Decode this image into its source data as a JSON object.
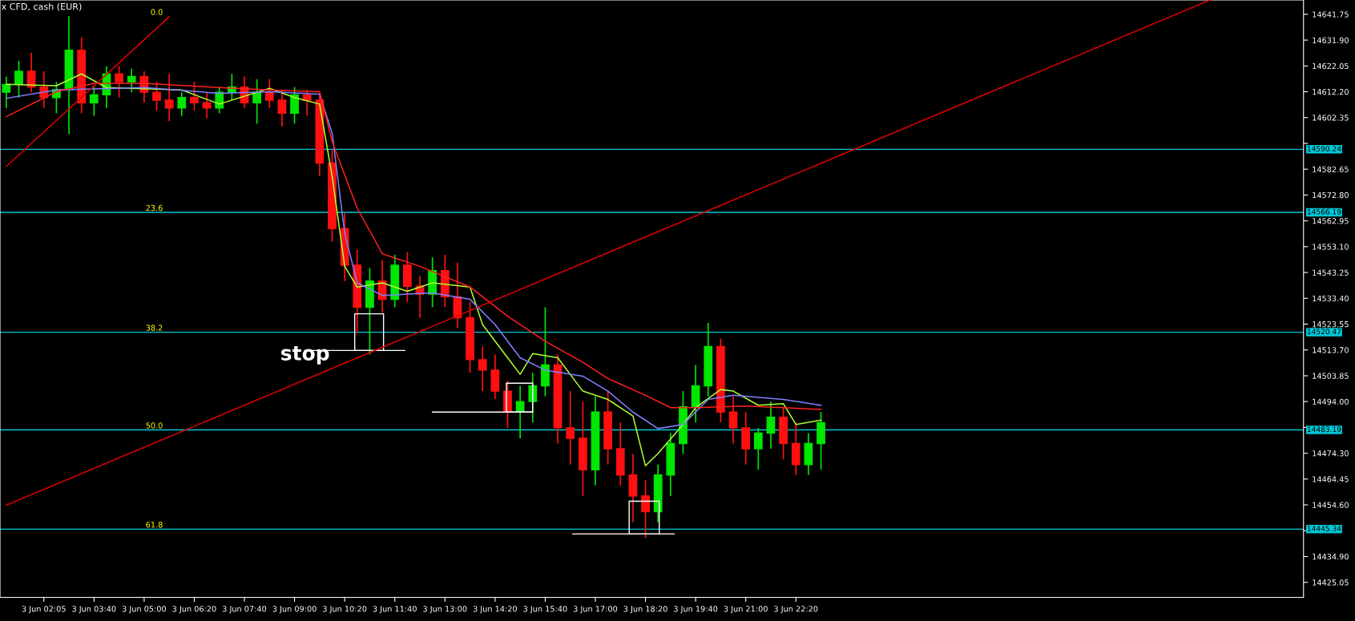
{
  "chart_data": {
    "type": "candlestick",
    "title": "x CFD, cash (EUR)",
    "categories": [
      null,
      null,
      null,
      "3 Jun 02:05",
      null,
      null,
      null,
      "3 Jun 03:40",
      null,
      null,
      null,
      "3 Jun 05:00",
      null,
      null,
      null,
      "3 Jun 06:20",
      null,
      null,
      null,
      "3 Jun 07:40",
      null,
      null,
      null,
      "3 Jun 09:00",
      null,
      null,
      null,
      "3 Jun 10:20",
      null,
      null,
      null,
      "3 Jun 11:40",
      null,
      null,
      null,
      "3 Jun 13:00",
      null,
      null,
      null,
      "3 Jun 14:20",
      null,
      null,
      null,
      "3 Jun 15:40",
      null,
      null,
      null,
      "3 Jun 17:00",
      null,
      null,
      null,
      "3 Jun 18:20",
      null,
      null,
      null,
      "3 Jun 19:40",
      null,
      null,
      null,
      "3 Jun 21:00",
      null,
      null,
      null,
      "3 Jun 22:20",
      null,
      null,
      null,
      null,
      null,
      null,
      null,
      null,
      null,
      null,
      null,
      null,
      null,
      null,
      null,
      null,
      null,
      null,
      null,
      null,
      null,
      null,
      null,
      null,
      null,
      null,
      null,
      null,
      null,
      null,
      null,
      null,
      null,
      null,
      null,
      null,
      null,
      null,
      null,
      null
    ],
    "ohlc": [
      [
        14612,
        14618,
        14606,
        14615
      ],
      [
        14615,
        14624,
        14610,
        14620
      ],
      [
        14620,
        14627,
        14612,
        14614
      ],
      [
        14614,
        14620,
        14606,
        14610
      ],
      [
        14610,
        14616,
        14604,
        14613
      ],
      [
        14613,
        14641,
        14596,
        14628
      ],
      [
        14628,
        14633,
        14604,
        14608
      ],
      [
        14608,
        14614,
        14603,
        14611
      ],
      [
        14611,
        14622,
        14606,
        14619
      ],
      [
        14619,
        14622,
        14610,
        14616
      ],
      [
        14616,
        14621,
        14612,
        14618
      ],
      [
        14618,
        14620,
        14608,
        14612
      ],
      [
        14612,
        14616,
        14605,
        14609
      ],
      [
        14609,
        14619,
        14601,
        14606
      ],
      [
        14606,
        14612,
        14603,
        14610
      ],
      [
        14610,
        14616,
        14605,
        14608
      ],
      [
        14608,
        14612,
        14602,
        14606
      ],
      [
        14606,
        14614,
        14604,
        14612
      ],
      [
        14612,
        14619,
        14609,
        14614
      ],
      [
        14614,
        14618,
        14606,
        14608
      ],
      [
        14608,
        14617,
        14600,
        14612
      ],
      [
        14612,
        14617,
        14606,
        14609
      ],
      [
        14609,
        14613,
        14599,
        14604
      ],
      [
        14604,
        14614,
        14600,
        14611
      ],
      [
        14611,
        14613,
        14603,
        14609
      ],
      [
        14609,
        14611,
        14580,
        14585
      ],
      [
        14585,
        14590,
        14555,
        14560
      ],
      [
        14560,
        14566,
        14540,
        14546
      ],
      [
        14546,
        14552,
        14520,
        14530
      ],
      [
        14530,
        14545,
        14512,
        14540
      ],
      [
        14540,
        14548,
        14528,
        14533
      ],
      [
        14533,
        14550,
        14530,
        14546
      ],
      [
        14546,
        14551,
        14532,
        14538
      ],
      [
        14538,
        14542,
        14526,
        14535
      ],
      [
        14535,
        14549,
        14530,
        14544
      ],
      [
        14544,
        14550,
        14530,
        14534
      ],
      [
        14534,
        14547,
        14522,
        14526
      ],
      [
        14526,
        14532,
        14505,
        14510
      ],
      [
        14510,
        14515,
        14498,
        14506
      ],
      [
        14506,
        14512,
        14495,
        14498
      ],
      [
        14498,
        14502,
        14484,
        14490
      ],
      [
        14490,
        14500,
        14480,
        14494
      ],
      [
        14494,
        14505,
        14486,
        14500
      ],
      [
        14500,
        14530,
        14496,
        14508
      ],
      [
        14508,
        14512,
        14478,
        14484
      ],
      [
        14484,
        14498,
        14470,
        14480
      ],
      [
        14480,
        14494,
        14458,
        14468
      ],
      [
        14468,
        14496,
        14462,
        14490
      ],
      [
        14490,
        14498,
        14470,
        14476
      ],
      [
        14476,
        14486,
        14462,
        14466
      ],
      [
        14466,
        14474,
        14448,
        14458
      ],
      [
        14458,
        14464,
        14442,
        14452
      ],
      [
        14452,
        14470,
        14448,
        14466
      ],
      [
        14466,
        14482,
        14458,
        14478
      ],
      [
        14478,
        14498,
        14474,
        14492
      ],
      [
        14492,
        14508,
        14486,
        14500
      ],
      [
        14500,
        14524,
        14496,
        14515
      ],
      [
        14515,
        14518,
        14486,
        14490
      ],
      [
        14490,
        14496,
        14478,
        14484
      ],
      [
        14484,
        14490,
        14470,
        14476
      ],
      [
        14476,
        14484,
        14468,
        14482
      ],
      [
        14482,
        14494,
        14476,
        14488
      ],
      [
        14488,
        14492,
        14472,
        14478
      ],
      [
        14478,
        14486,
        14466,
        14470
      ],
      [
        14470,
        14482,
        14466,
        14478
      ],
      [
        14478,
        14490,
        14468,
        14486
      ],
      null,
      null,
      null,
      null,
      null,
      null,
      null,
      null,
      null,
      null,
      null,
      null,
      null,
      null,
      null,
      null,
      null,
      null,
      null,
      null,
      null,
      null,
      null,
      null,
      null,
      null,
      null,
      null,
      null,
      null,
      null,
      null,
      null,
      null,
      null,
      null,
      null,
      null
    ],
    "series": [
      {
        "type": "line",
        "color": "#adff2f",
        "values": [
          14615,
          null,
          null,
          null,
          14614.5,
          null,
          14619,
          null,
          14613.8,
          null,
          null,
          null,
          null,
          null,
          14612.9,
          null,
          null,
          14607.5,
          null,
          null,
          null,
          14613.5,
          null,
          14610,
          null,
          14607.5,
          14580,
          14545.6,
          14537.7,
          null,
          14539.3,
          null,
          14536.1,
          null,
          14539.3,
          null,
          null,
          14537.7,
          14523.4,
          null,
          14510.7,
          14504.4,
          14512.3,
          null,
          14510.7,
          null,
          14498,
          null,
          14494.8,
          null,
          14488.5,
          14469.5,
          14474.2,
          null,
          14485.3,
          14491.7,
          null,
          14498.6,
          14498,
          null,
          14492.6,
          null,
          14493.2,
          14485.3,
          null,
          14486.9,
          null,
          null,
          null,
          null,
          null,
          null,
          null,
          null,
          null,
          null,
          null,
          null,
          null,
          null,
          null,
          null,
          null,
          null,
          null,
          null,
          null,
          null,
          null,
          null,
          null,
          null,
          null,
          null,
          null,
          null,
          null,
          null,
          null,
          null,
          null,
          null,
          null,
          null
        ]
      },
      {
        "type": "line",
        "color": "#8080ff",
        "values": [
          14609.7,
          null,
          null,
          null,
          14612.9,
          null,
          null,
          null,
          null,
          null,
          null,
          14613.8,
          null,
          null,
          null,
          null,
          null,
          14611.6,
          null,
          null,
          null,
          14612.2,
          null,
          null,
          null,
          14611.3,
          14596.4,
          14558.3,
          14539.3,
          null,
          14534.5,
          null,
          null,
          null,
          14535.5,
          null,
          null,
          14533,
          null,
          14523.4,
          null,
          14510.7,
          null,
          14506,
          null,
          null,
          14503.7,
          null,
          14498,
          null,
          14490,
          null,
          14483.7,
          null,
          14485.3,
          null,
          14494.8,
          null,
          14496.4,
          null,
          null,
          null,
          14494.8,
          null,
          null,
          14492.6,
          null,
          null,
          null,
          null,
          null,
          null,
          null,
          null,
          null,
          null,
          null,
          null,
          null,
          null,
          null,
          null,
          null,
          null,
          null,
          null,
          null,
          null,
          null,
          null,
          null,
          null,
          null,
          null,
          null,
          null,
          null,
          null,
          null,
          null,
          null,
          null,
          null,
          null
        ]
      },
      {
        "type": "line",
        "color": "#ff2020",
        "values": [
          14602.7,
          null,
          null,
          null,
          14612.2,
          null,
          null,
          14615.4,
          null,
          null,
          null,
          14615.4,
          null,
          null,
          null,
          null,
          null,
          14613.8,
          null,
          null,
          null,
          14612.9,
          null,
          null,
          null,
          14612.2,
          14593.2,
          null,
          14567.8,
          null,
          14550.4,
          null,
          null,
          14545.6,
          null,
          null,
          null,
          14537.7,
          null,
          null,
          14526.6,
          null,
          null,
          14517,
          null,
          null,
          14509,
          null,
          14502.8,
          null,
          null,
          14496.4,
          null,
          14491.7,
          null,
          14491.7,
          null,
          null,
          null,
          14492.3,
          null,
          null,
          14491.7,
          null,
          null,
          14491,
          null,
          null,
          null,
          null,
          null,
          null,
          null,
          null,
          null,
          null,
          null,
          null,
          null,
          null,
          null,
          null,
          null,
          null,
          null,
          null,
          null,
          null,
          null,
          null,
          null,
          null,
          null,
          null,
          null,
          null,
          null,
          null,
          null,
          null,
          null,
          null,
          null,
          null
        ]
      },
      {
        "type": "line",
        "color": "#e00000",
        "values": [
          14454.5,
          null,
          null,
          null,
          null,
          null,
          null,
          null,
          null,
          null,
          null,
          null,
          null,
          null,
          null,
          null,
          null,
          null,
          null,
          null,
          null,
          null,
          null,
          null,
          null,
          null,
          null,
          null,
          null,
          null,
          null,
          null,
          null,
          null,
          null,
          null,
          null,
          null,
          null,
          null,
          null,
          null,
          null,
          null,
          null,
          null,
          null,
          null,
          null,
          null,
          null,
          null,
          null,
          null,
          null,
          null,
          null,
          null,
          null,
          null,
          null,
          null,
          null,
          null,
          null,
          null,
          null,
          null,
          null,
          null,
          null,
          null,
          null,
          null,
          null,
          null,
          null,
          null,
          null,
          null,
          null,
          null,
          null,
          null,
          null,
          null,
          null,
          null,
          null,
          null,
          null,
          null,
          null,
          null,
          null,
          null,
          14647.1,
          null,
          null,
          null,
          null,
          null,
          null,
          null
        ]
      },
      {
        "type": "line",
        "color": "#e00000",
        "values": [
          14583.7,
          null,
          null,
          null,
          null,
          null,
          null,
          null,
          null,
          null,
          null,
          null,
          null,
          14640.8,
          null,
          null,
          null,
          null,
          null,
          null,
          null,
          null,
          null,
          null,
          null,
          null,
          null,
          null,
          null,
          null,
          null,
          null,
          null,
          null,
          null,
          null,
          null,
          null,
          null,
          null,
          null,
          null,
          null,
          null,
          null,
          null,
          null,
          null,
          null,
          null,
          null,
          null,
          null,
          null,
          null,
          null,
          null,
          null,
          null,
          null,
          null,
          null,
          null,
          null,
          null,
          null,
          null,
          null,
          null,
          null,
          null,
          null,
          null,
          null,
          null,
          null,
          null,
          null,
          null,
          null,
          null,
          null,
          null,
          null,
          null,
          null,
          null,
          null,
          null,
          null,
          null,
          null,
          null,
          null,
          null,
          null,
          null,
          null,
          null,
          null,
          null,
          null,
          null,
          null
        ]
      }
    ],
    "ylim": [
      14419.3,
      14647.2
    ],
    "yticks": [
      {
        "value": 14641.75,
        "label": "14641.75"
      },
      {
        "value": 14631.9,
        "label": "14631.90"
      },
      {
        "value": 14622.05,
        "label": "14622.05"
      },
      {
        "value": 14612.2,
        "label": "14612.20"
      },
      {
        "value": 14602.35,
        "label": "14602.35"
      },
      {
        "value": 14592.5,
        "label": null
      },
      {
        "value": 14582.65,
        "label": "14582.65"
      },
      {
        "value": 14572.8,
        "label": "14572.80"
      },
      {
        "value": 14562.95,
        "label": "14562.95"
      },
      {
        "value": 14553.1,
        "label": "14553.10"
      },
      {
        "value": 14543.25,
        "label": "14543.25"
      },
      {
        "value": 14533.4,
        "label": "14533.40"
      },
      {
        "value": 14523.55,
        "label": "14523.55"
      },
      {
        "value": 14513.7,
        "label": "14513.70"
      },
      {
        "value": 14503.85,
        "label": "14503.85"
      },
      {
        "value": 14494.0,
        "label": "14494.00"
      },
      {
        "value": 14484.15,
        "label": null
      },
      {
        "value": 14474.3,
        "label": "14474.30"
      },
      {
        "value": 14464.45,
        "label": "14464.45"
      },
      {
        "value": 14454.6,
        "label": "14454.60"
      },
      {
        "value": 14444.75,
        "label": null
      },
      {
        "value": 14434.9,
        "label": "14434.90"
      },
      {
        "value": 14425.05,
        "label": "14425.05"
      }
    ],
    "ref_lines": [
      {
        "axis": "y",
        "value": 14590.24,
        "label": "14590.24",
        "color": "#00c8d8"
      },
      {
        "axis": "y",
        "value": 14566.19,
        "label": "14566.19",
        "color": "#00c8d8"
      },
      {
        "axis": "y",
        "value": 14520.47,
        "label": "14520.47",
        "color": "#00c8d8"
      },
      {
        "axis": "y",
        "value": 14483.19,
        "label": "14483.19",
        "color": "#00c8d8"
      },
      {
        "axis": "y",
        "value": 14445.34,
        "label": "14445.34",
        "color": "#00c8d8"
      }
    ],
    "annotations": [
      "0.0",
      "23.6",
      "38.2",
      "50.0",
      "61.8",
      "stop"
    ],
    "grid": false,
    "legend": false
  }
}
